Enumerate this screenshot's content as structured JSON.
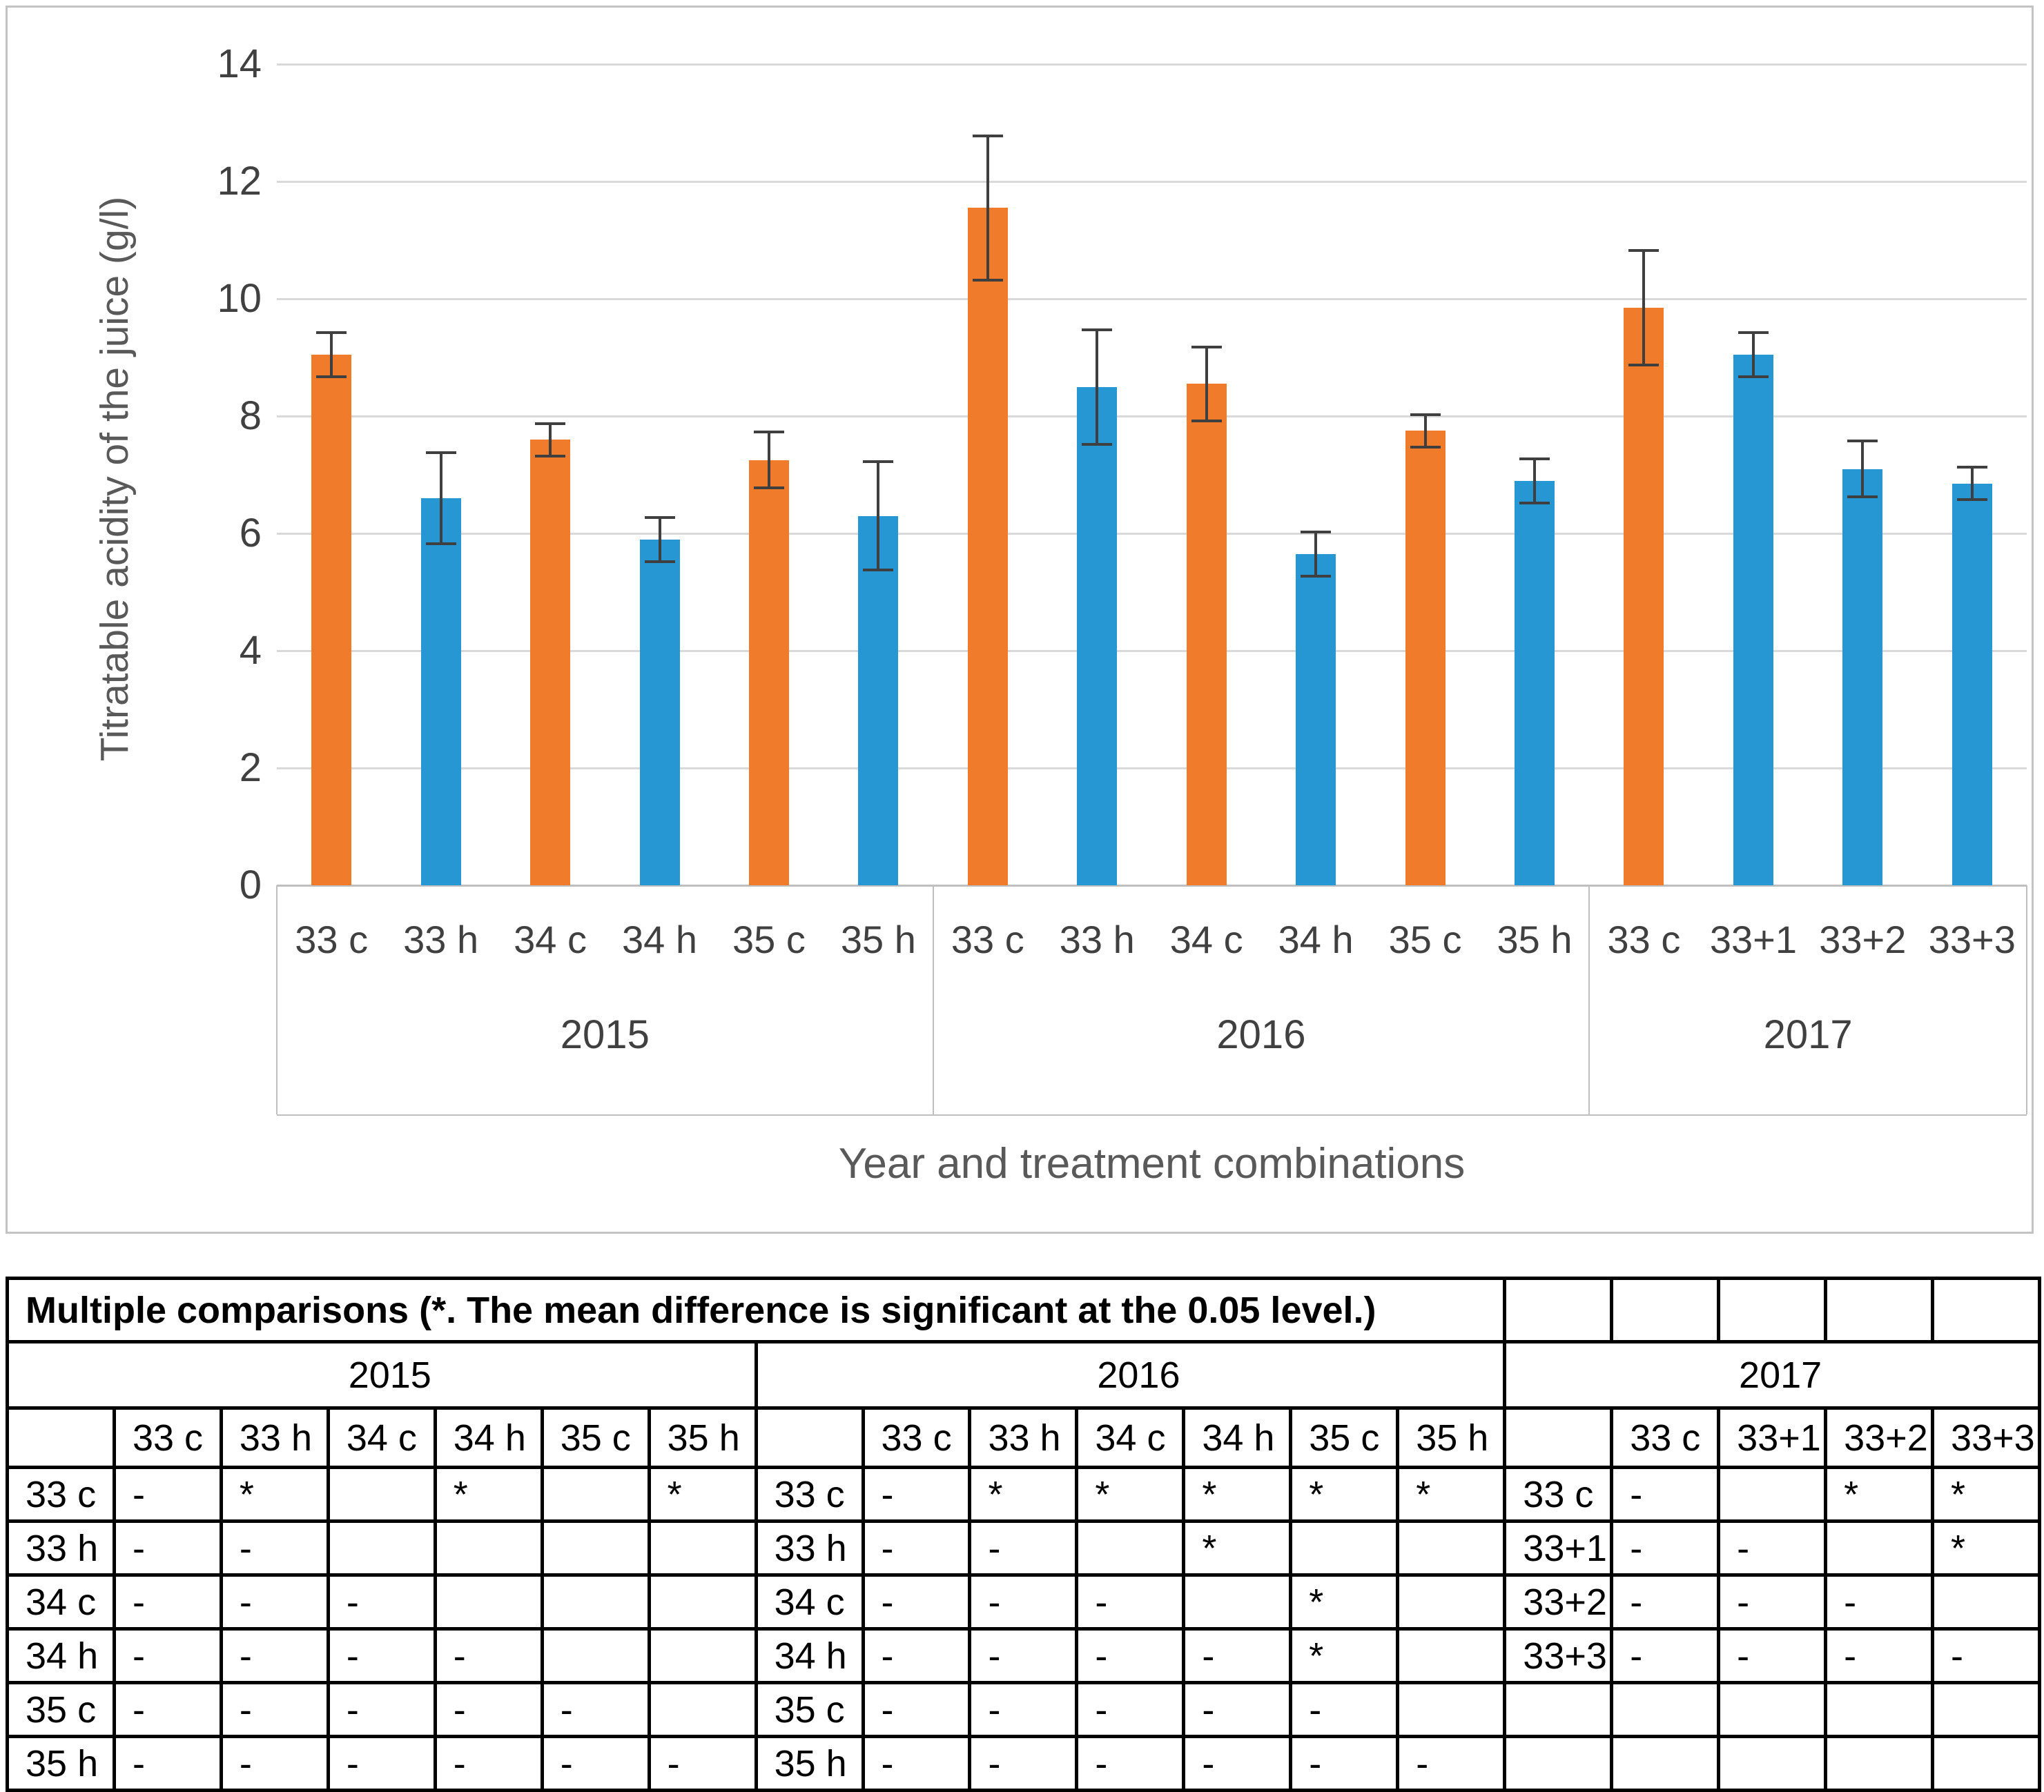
{
  "chart_data": {
    "type": "bar",
    "title": "",
    "ylabel": "Titratable acidity of the juice (g/l)",
    "xlabel": "Year and treatment combinations",
    "ylim": [
      0,
      14
    ],
    "yticks": [
      0,
      2,
      4,
      6,
      8,
      10,
      12,
      14
    ],
    "ytick_labels": [
      "0",
      "2",
      "4",
      "6",
      "8",
      "10",
      "12",
      "14"
    ],
    "grid": true,
    "legend": "none",
    "groups": [
      {
        "year": "2015",
        "bars": [
          {
            "label": "33 c",
            "value": 9.05,
            "error": 0.4,
            "color": "orange"
          },
          {
            "label": "33 h",
            "value": 6.6,
            "error": 0.8,
            "color": "blue"
          },
          {
            "label": "34 c",
            "value": 7.6,
            "error": 0.3,
            "color": "orange"
          },
          {
            "label": "34 h",
            "value": 5.9,
            "error": 0.4,
            "color": "blue"
          },
          {
            "label": "35 c",
            "value": 7.25,
            "error": 0.5,
            "color": "orange"
          },
          {
            "label": "35 h",
            "value": 6.3,
            "error": 0.95,
            "color": "blue"
          }
        ]
      },
      {
        "year": "2016",
        "bars": [
          {
            "label": "33 c",
            "value": 11.55,
            "error": 1.25,
            "color": "orange"
          },
          {
            "label": "33 h",
            "value": 8.5,
            "error": 1.0,
            "color": "blue"
          },
          {
            "label": "34 c",
            "value": 8.55,
            "error": 0.65,
            "color": "orange"
          },
          {
            "label": "34 h",
            "value": 5.65,
            "error": 0.4,
            "color": "blue"
          },
          {
            "label": "35 c",
            "value": 7.75,
            "error": 0.3,
            "color": "orange"
          },
          {
            "label": "35 h",
            "value": 6.9,
            "error": 0.4,
            "color": "blue"
          }
        ]
      },
      {
        "year": "2017",
        "bars": [
          {
            "label": "33 c",
            "value": 9.85,
            "error": 1.0,
            "color": "orange"
          },
          {
            "label": "33+1",
            "value": 9.05,
            "error": 0.4,
            "color": "blue"
          },
          {
            "label": "33+2",
            "value": 7.1,
            "error": 0.5,
            "color": "blue"
          },
          {
            "label": "33+3",
            "value": 6.85,
            "error": 0.3,
            "color": "blue"
          }
        ]
      }
    ],
    "colors": {
      "orange": "#F07C2B",
      "blue": "#2697D3",
      "error_bar": "#3F3F3F",
      "gridline": "#D9D9D9",
      "axis_line": "#BFBFBF",
      "text_dark": "#404040",
      "text_gray": "#595959"
    }
  },
  "comparisons_table": {
    "title": "Multiple comparisons (*. The mean difference is significant at the 0.05 level.)",
    "groups": [
      {
        "year": "2015",
        "columns": [
          "33 c",
          "33 h",
          "34 c",
          "34 h",
          "35 c",
          "35 h"
        ],
        "rows": [
          {
            "label": "33 c",
            "cells": [
              "-",
              "*",
              "",
              "*",
              "",
              "*"
            ]
          },
          {
            "label": "33 h",
            "cells": [
              "-",
              "-",
              "",
              "",
              "",
              ""
            ]
          },
          {
            "label": "34 c",
            "cells": [
              "-",
              "-",
              "-",
              "",
              "",
              ""
            ]
          },
          {
            "label": "34 h",
            "cells": [
              "-",
              "-",
              "-",
              "-",
              "",
              ""
            ]
          },
          {
            "label": "35 c",
            "cells": [
              "-",
              "-",
              "-",
              "-",
              "-",
              ""
            ]
          },
          {
            "label": "35 h",
            "cells": [
              "-",
              "-",
              "-",
              "-",
              "-",
              "-"
            ]
          }
        ]
      },
      {
        "year": "2016",
        "columns": [
          "33 c",
          "33 h",
          "34 c",
          "34 h",
          "35 c",
          "35 h"
        ],
        "rows": [
          {
            "label": "33 c",
            "cells": [
              "-",
              "*",
              "*",
              "*",
              "*",
              "*"
            ]
          },
          {
            "label": "33 h",
            "cells": [
              "-",
              "-",
              "",
              "*",
              "",
              ""
            ]
          },
          {
            "label": "34 c",
            "cells": [
              "-",
              "-",
              "-",
              "",
              "*",
              ""
            ]
          },
          {
            "label": "34 h",
            "cells": [
              "-",
              "-",
              "-",
              "-",
              "*",
              ""
            ]
          },
          {
            "label": "35 c",
            "cells": [
              "-",
              "-",
              "-",
              "-",
              "-",
              ""
            ]
          },
          {
            "label": "35 h",
            "cells": [
              "-",
              "-",
              "-",
              "-",
              "-",
              "-"
            ]
          }
        ]
      },
      {
        "year": "2017",
        "columns": [
          "33 c",
          "33+1",
          "33+2",
          "33+3"
        ],
        "rows": [
          {
            "label": "33 c",
            "cells": [
              "-",
              "",
              "*",
              "*"
            ]
          },
          {
            "label": "33+1",
            "cells": [
              "-",
              "-",
              "",
              "*"
            ]
          },
          {
            "label": "33+2",
            "cells": [
              "-",
              "-",
              "-",
              ""
            ]
          },
          {
            "label": "33+3",
            "cells": [
              "-",
              "-",
              "-",
              "-"
            ]
          }
        ]
      }
    ]
  }
}
